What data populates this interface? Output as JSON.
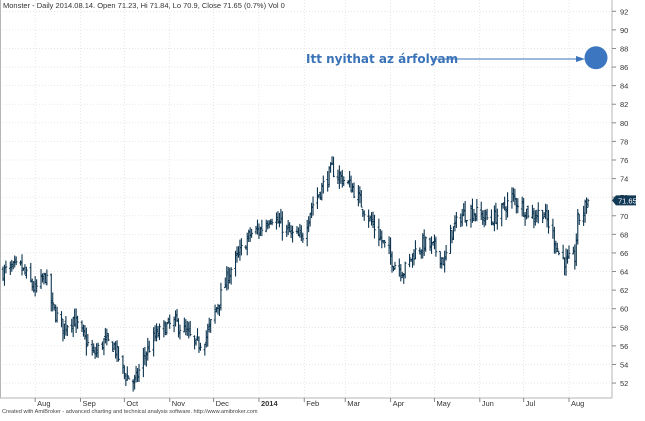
{
  "header": {
    "text": "Monster - Daily 2014.08.14. Open 71.23, Hi 71.84, Lo 70.9, Close 71.65 (0.7%) Vol 0"
  },
  "footer": {
    "credit": "Created with AmiBroker - advanced charting and technical analysis software. http://www.amibroker.com"
  },
  "annotation": {
    "text": "Itt nyithat az árfolyam",
    "color": "#3b73b8",
    "marker_price": 87
  },
  "last_price_tag": "71.65",
  "colors": {
    "bars": "#0d3550",
    "grid": "#d8d8d8",
    "tag_bg": "#123a57",
    "marker": "#3d76c0"
  },
  "chart_data": {
    "type": "ohlc",
    "title": "Monster - Daily 2014.08.14.",
    "ylim": [
      50.5,
      93
    ],
    "y_ticks": [
      52,
      54,
      56,
      58,
      60,
      62,
      64,
      66,
      68,
      70,
      72,
      74,
      76,
      78,
      80,
      82,
      84,
      86,
      88,
      90,
      92
    ],
    "x_labels": [
      {
        "label": "Aug",
        "date": "2013-08-01"
      },
      {
        "label": "Sep",
        "date": "2013-09-01"
      },
      {
        "label": "Oct",
        "date": "2013-10-01"
      },
      {
        "label": "Nov",
        "date": "2013-11-01"
      },
      {
        "label": "Dec",
        "date": "2013-12-01"
      },
      {
        "label": "2014",
        "date": "2014-01-01"
      },
      {
        "label": "Feb",
        "date": "2014-02-01"
      },
      {
        "label": "Mar",
        "date": "2014-03-01"
      },
      {
        "label": "Apr",
        "date": "2014-04-01"
      },
      {
        "label": "May",
        "date": "2014-05-01"
      },
      {
        "label": "Jun",
        "date": "2014-06-01"
      },
      {
        "label": "Jul",
        "date": "2014-07-01"
      },
      {
        "label": "Aug",
        "date": "2014-08-01"
      }
    ],
    "date_range": [
      "2013-07-10",
      "2014-08-14"
    ],
    "close_path": [
      [
        "2013-07-10",
        64
      ],
      [
        "2013-07-22",
        64.5
      ],
      [
        "2013-08-01",
        62
      ],
      [
        "2013-08-08",
        63.5
      ],
      [
        "2013-08-13",
        60
      ],
      [
        "2013-08-20",
        58
      ],
      [
        "2013-08-27",
        59
      ],
      [
        "2013-09-03",
        57
      ],
      [
        "2013-09-10",
        55
      ],
      [
        "2013-09-17",
        56.5
      ],
      [
        "2013-09-24",
        56
      ],
      [
        "2013-10-01",
        53
      ],
      [
        "2013-10-08",
        52
      ],
      [
        "2013-10-15",
        55
      ],
      [
        "2013-10-22",
        57
      ],
      [
        "2013-10-29",
        58
      ],
      [
        "2013-11-05",
        58.5
      ],
      [
        "2013-11-12",
        57.5
      ],
      [
        "2013-11-19",
        56
      ],
      [
        "2013-11-26",
        57
      ],
      [
        "2013-12-05",
        61
      ],
      [
        "2013-12-12",
        64
      ],
      [
        "2013-12-19",
        66
      ],
      [
        "2013-12-26",
        68
      ],
      [
        "2014-01-02",
        68.5
      ],
      [
        "2014-01-09",
        70
      ],
      [
        "2014-01-16",
        69
      ],
      [
        "2014-01-23",
        68
      ],
      [
        "2014-01-30",
        67.5
      ],
      [
        "2014-02-06",
        71
      ],
      [
        "2014-02-13",
        73
      ],
      [
        "2014-02-20",
        75
      ],
      [
        "2014-02-27",
        74
      ],
      [
        "2014-03-06",
        73
      ],
      [
        "2014-03-13",
        71
      ],
      [
        "2014-03-20",
        69
      ],
      [
        "2014-03-27",
        67
      ],
      [
        "2014-04-03",
        65
      ],
      [
        "2014-04-10",
        64
      ],
      [
        "2014-04-17",
        66
      ],
      [
        "2014-04-24",
        67
      ],
      [
        "2014-05-01",
        66.5
      ],
      [
        "2014-05-08",
        65
      ],
      [
        "2014-05-12",
        68
      ],
      [
        "2014-05-19",
        70
      ],
      [
        "2014-05-26",
        70.5
      ],
      [
        "2014-06-02",
        70
      ],
      [
        "2014-06-09",
        69.5
      ],
      [
        "2014-06-16",
        70.5
      ],
      [
        "2014-06-23",
        72
      ],
      [
        "2014-06-30",
        71
      ],
      [
        "2014-07-07",
        70
      ],
      [
        "2014-07-14",
        70.5
      ],
      [
        "2014-07-21",
        68
      ],
      [
        "2014-07-25",
        66
      ],
      [
        "2014-07-30",
        65
      ],
      [
        "2014-08-05",
        65.5
      ],
      [
        "2014-08-07",
        69.5
      ],
      [
        "2014-08-11",
        70.5
      ],
      [
        "2014-08-14",
        71.65
      ]
    ],
    "last": {
      "date": "2014-08-14",
      "open": 71.23,
      "high": 71.84,
      "low": 70.9,
      "close": 71.65
    }
  }
}
